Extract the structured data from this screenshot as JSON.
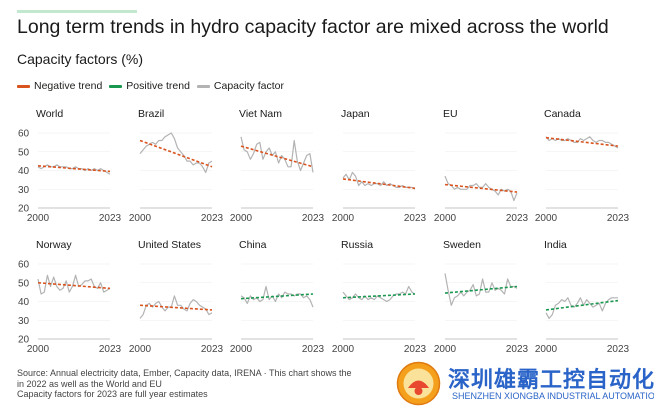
{
  "title": "Long term trends in hydro capacity factor are mixed across the world",
  "subtitle": "Capacity factors (%)",
  "legend": [
    {
      "label": "Negative trend",
      "color": "#d9531e"
    },
    {
      "label": "Positive trend",
      "color": "#1a9850"
    },
    {
      "label": "Capacity factor",
      "color": "#b3b3b3"
    }
  ],
  "source_lines": [
    "Source: Annual electricity data, Ember, Capacity data, IRENA · This chart shows the",
    "in 2022 as well as the World and EU",
    "Capacity factors for 2023 are full year estimates"
  ],
  "watermark": {
    "cn": "深圳雄霸工控自动化",
    "en": "SHENZHEN XIONGBA INDUSTRIAL AUTOMATION"
  },
  "chart_data": {
    "type": "line",
    "ylim": [
      20,
      60
    ],
    "yticks": [
      20,
      30,
      40,
      50,
      60
    ],
    "xlim": [
      2000,
      2023
    ],
    "xtick_labels": [
      "2000",
      "2023"
    ],
    "years": [
      2000,
      2001,
      2002,
      2003,
      2004,
      2005,
      2006,
      2007,
      2008,
      2009,
      2010,
      2011,
      2012,
      2013,
      2014,
      2015,
      2016,
      2017,
      2018,
      2019,
      2020,
      2021,
      2022,
      2023
    ],
    "panels": [
      {
        "name": "World",
        "trend": "negative",
        "trend_start": 42.5,
        "trend_end": 39.5,
        "values": [
          42,
          41,
          42,
          43,
          42,
          42,
          43,
          42,
          42,
          42,
          41,
          41,
          42,
          41,
          41,
          40,
          41,
          40,
          41,
          40,
          41,
          40,
          39,
          38
        ]
      },
      {
        "name": "Brazil",
        "trend": "negative",
        "trend_start": 56,
        "trend_end": 42,
        "values": [
          49,
          51,
          53,
          54,
          55,
          54,
          56,
          56,
          58,
          59,
          60,
          57,
          52,
          50,
          48,
          45,
          45,
          43,
          44,
          44,
          42,
          39,
          44,
          45
        ]
      },
      {
        "name": "Viet Nam",
        "trend": "negative",
        "trend_start": 53,
        "trend_end": 42,
        "values": [
          58,
          51,
          50,
          46,
          49,
          54,
          55,
          46,
          50,
          52,
          48,
          50,
          44,
          48,
          46,
          42,
          42,
          56,
          45,
          40,
          44,
          48,
          49,
          39
        ]
      },
      {
        "name": "Japan",
        "trend": "negative",
        "trend_start": 35.5,
        "trend_end": 30.5,
        "values": [
          36,
          38,
          35,
          39,
          37,
          32,
          34,
          32,
          33,
          32,
          33,
          33,
          32,
          34,
          32,
          33,
          32,
          31,
          31,
          32,
          31,
          31,
          31,
          30
        ]
      },
      {
        "name": "EU",
        "trend": "negative",
        "trend_start": 32.5,
        "trend_end": 28.5,
        "values": [
          37,
          33,
          32,
          30,
          31,
          30,
          30,
          30,
          32,
          32,
          33,
          31,
          31,
          33,
          31,
          30,
          29,
          27,
          30,
          29,
          30,
          29,
          24,
          28
        ]
      },
      {
        "name": "Canada",
        "trend": "negative",
        "trend_start": 57.5,
        "trend_end": 53,
        "values": [
          58,
          56,
          57,
          56,
          57,
          56,
          56,
          57,
          56,
          55,
          55,
          57,
          56,
          57,
          58,
          56,
          55,
          56,
          56,
          55,
          55,
          54,
          53,
          52
        ]
      },
      {
        "name": "Norway",
        "trend": "negative",
        "trend_start": 50,
        "trend_end": 47,
        "values": [
          52,
          44,
          45,
          54,
          48,
          53,
          48,
          46,
          47,
          51,
          45,
          48,
          54,
          48,
          49,
          51,
          51,
          52,
          48,
          47,
          50,
          45,
          46,
          47
        ]
      },
      {
        "name": "United States",
        "trend": "negative",
        "trend_start": 38,
        "trend_end": 35.5,
        "values": [
          31,
          33,
          38,
          39,
          37,
          39,
          40,
          37,
          35,
          37,
          37,
          43,
          38,
          38,
          36,
          35,
          39,
          41,
          40,
          38,
          37,
          36,
          33,
          34
        ]
      },
      {
        "name": "China",
        "trend": "positive",
        "trend_start": 41.5,
        "trend_end": 44,
        "values": [
          43,
          42,
          39,
          43,
          41,
          42,
          40,
          41,
          48,
          41,
          43,
          40,
          44,
          42,
          45,
          44,
          44,
          43,
          44,
          44,
          42,
          43,
          41,
          37
        ]
      },
      {
        "name": "Russia",
        "trend": "positive",
        "trend_start": 42,
        "trend_end": 44,
        "values": [
          45,
          43,
          41,
          42,
          44,
          42,
          41,
          43,
          41,
          42,
          41,
          43,
          42,
          41,
          40,
          41,
          43,
          44,
          44,
          45,
          44,
          48,
          45,
          44
        ]
      },
      {
        "name": "Sweden",
        "trend": "positive",
        "trend_start": 44.5,
        "trend_end": 48,
        "values": [
          55,
          46,
          38,
          42,
          43,
          45,
          43,
          45,
          46,
          49,
          43,
          44,
          52,
          45,
          45,
          50,
          46,
          47,
          46,
          44,
          52,
          48,
          48,
          47
        ]
      },
      {
        "name": "India",
        "trend": "positive",
        "trend_start": 35.5,
        "trend_end": 40.5,
        "values": [
          34,
          31,
          33,
          38,
          39,
          41,
          40,
          42,
          38,
          37,
          39,
          42,
          38,
          41,
          39,
          37,
          38,
          39,
          35,
          39,
          41,
          42,
          42,
          42
        ]
      }
    ]
  }
}
